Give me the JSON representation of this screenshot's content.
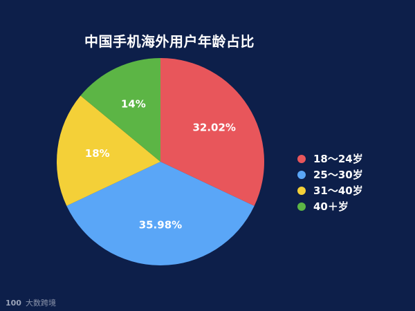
{
  "chart_data": {
    "type": "pie",
    "title": "中国手机海外用户年龄占比",
    "slices": [
      {
        "label": "18～24岁",
        "value": 32.02,
        "value_label": "32.02%",
        "color": "#e8565b"
      },
      {
        "label": "25～30岁",
        "value": 35.98,
        "value_label": "35.98%",
        "color": "#5aa6f7"
      },
      {
        "label": "31～40岁",
        "value": 18,
        "value_label": "18%",
        "color": "#f4d038"
      },
      {
        "label": "40＋岁",
        "value": 14,
        "value_label": "14%",
        "color": "#5cb545"
      }
    ],
    "legend": "right",
    "start_angle": "12 o'clock",
    "direction": "clockwise"
  },
  "watermark": {
    "logo": "100",
    "text": "大数跨境"
  }
}
